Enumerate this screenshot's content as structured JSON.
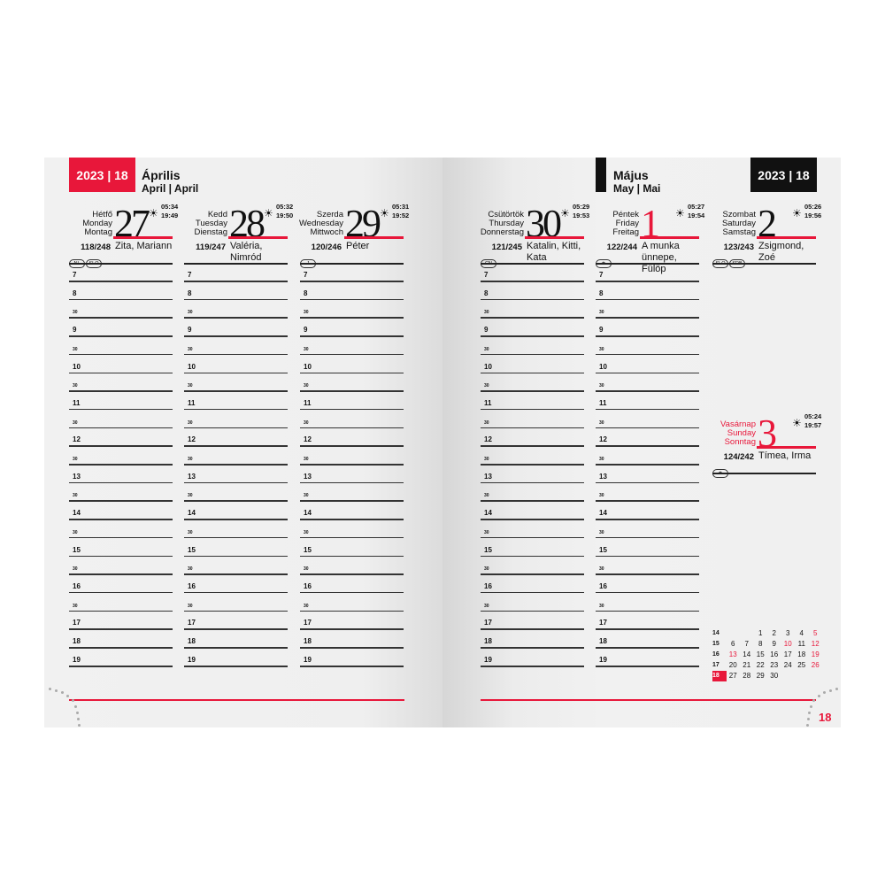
{
  "left_header": {
    "year_week": "2023 | 18",
    "month": "Április",
    "month_sub": "April | April"
  },
  "right_header": {
    "year_week": "2023 | 18",
    "month": "Május",
    "month_sub": "May | Mai"
  },
  "colors": {
    "accent": "#e8173a",
    "dark": "#111111"
  },
  "hours": [
    "7",
    "8",
    "30",
    "9",
    "30",
    "10",
    "30",
    "11",
    "30",
    "12",
    "30",
    "13",
    "30",
    "14",
    "30",
    "15",
    "30",
    "16",
    "30",
    "17",
    "18",
    "19"
  ],
  "days": [
    {
      "names": [
        "Hétfő",
        "Monday",
        "Montag"
      ],
      "num": "27",
      "sunrise": "05:34",
      "sunset": "19:49",
      "doy": "118/248",
      "nameday": "Zita, Mariann",
      "badges": [
        "NL",
        "SLO"
      ],
      "holiday": false
    },
    {
      "names": [
        "Kedd",
        "Tuesday",
        "Dienstag"
      ],
      "num": "28",
      "sunrise": "05:32",
      "sunset": "19:50",
      "doy": "119/247",
      "nameday": "Valéria, Nimród",
      "badges": [],
      "holiday": false
    },
    {
      "names": [
        "Szerda",
        "Wednesday",
        "Mittwoch"
      ],
      "num": "29",
      "sunrise": "05:31",
      "sunset": "19:52",
      "doy": "120/246",
      "nameday": "Péter",
      "badges": [
        "J"
      ],
      "holiday": false
    },
    {
      "names": [
        "Csütörtök",
        "Thursday",
        "Donnerstag"
      ],
      "num": "30",
      "sunrise": "05:29",
      "sunset": "19:53",
      "doy": "121/245",
      "nameday": "Katalin, Kitti, Kata",
      "badges": [
        "CN"
      ],
      "holiday": false
    },
    {
      "names": [
        "Péntek",
        "Friday",
        "Freitag"
      ],
      "num": "1",
      "sunrise": "05:27",
      "sunset": "19:54",
      "doy": "122/244",
      "nameday": "A munka ünnepe, Fülöp",
      "badges": [
        "★"
      ],
      "holiday": true
    },
    {
      "names": [
        "Szombat",
        "Saturday",
        "Samstag"
      ],
      "num": "2",
      "sunrise": "05:26",
      "sunset": "19:56",
      "doy": "123/243",
      "nameday": "Zsigmond, Zoé",
      "badges": [
        "SLO",
        "SRB"
      ],
      "holiday": false
    },
    {
      "names": [
        "Vasárnap",
        "Sunday",
        "Sonntag"
      ],
      "num": "3",
      "sunrise": "05:24",
      "sunset": "19:57",
      "doy": "124/242",
      "nameday": "Tímea, Irma",
      "badges": [
        "★"
      ],
      "holiday": true,
      "red_names": true
    }
  ],
  "mini_calendar": {
    "current_week": "18",
    "rows": [
      {
        "week": "14",
        "days": [
          "",
          "",
          "1",
          "2",
          "3",
          "4",
          "5"
        ]
      },
      {
        "week": "15",
        "days": [
          "6",
          "7",
          "8",
          "9",
          "10",
          "11",
          "12"
        ]
      },
      {
        "week": "16",
        "days": [
          "13",
          "14",
          "15",
          "16",
          "17",
          "18",
          "19"
        ]
      },
      {
        "week": "17",
        "days": [
          "20",
          "21",
          "22",
          "23",
          "24",
          "25",
          "26"
        ]
      },
      {
        "week": "18",
        "days": [
          "27",
          "28",
          "29",
          "30",
          "",
          "",
          ""
        ]
      }
    ],
    "red_days": [
      "5",
      "10",
      "12",
      "13",
      "19",
      "26"
    ]
  },
  "page_number": "18"
}
